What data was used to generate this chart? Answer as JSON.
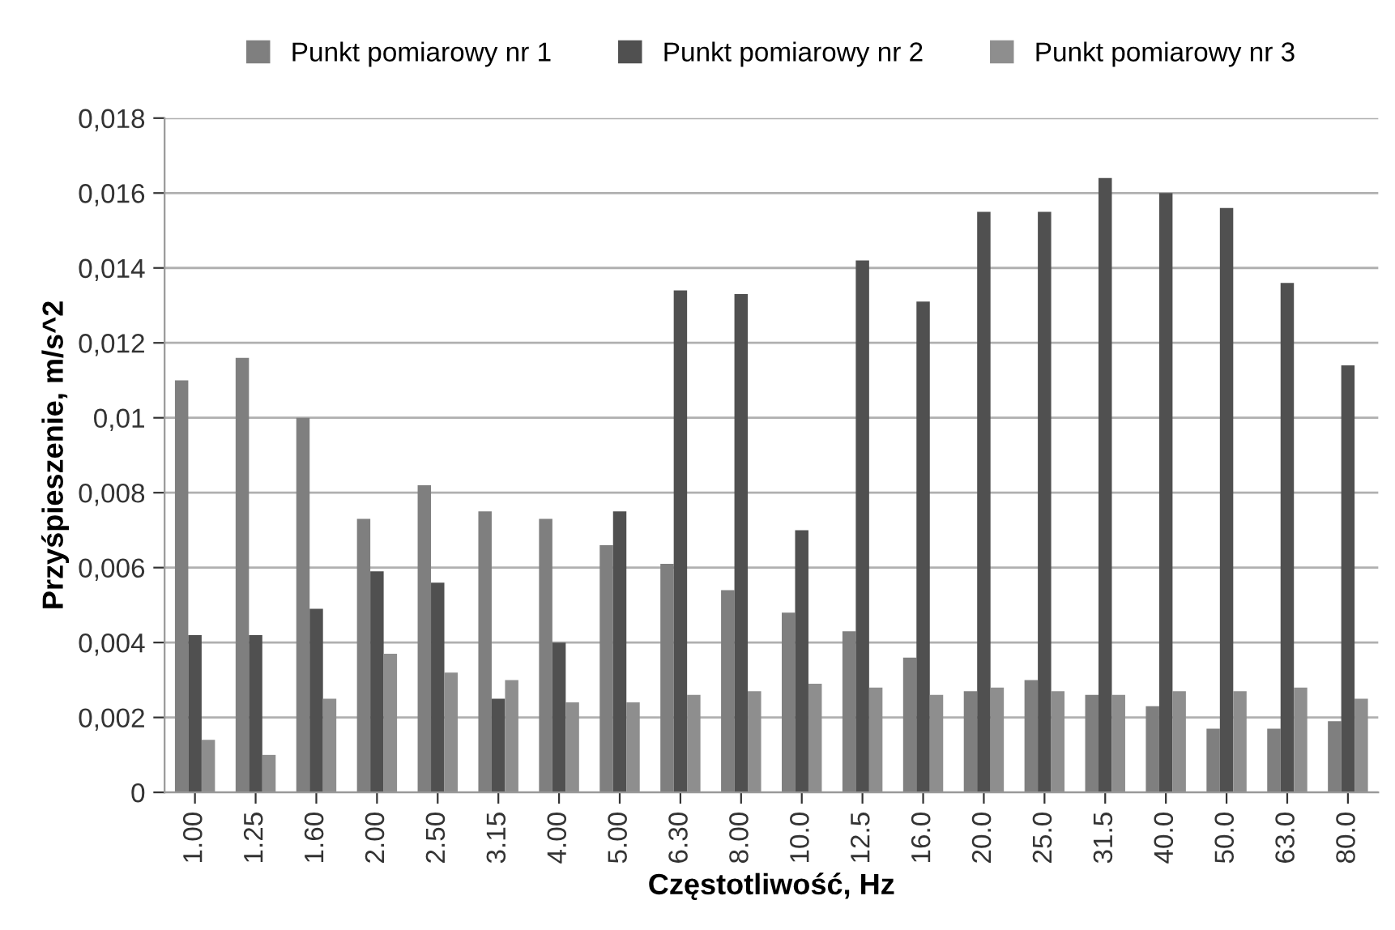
{
  "chart_data": {
    "type": "bar",
    "xlabel": "Częstotliwość, Hz",
    "ylabel": "Przyśpieszenie, m/s^2",
    "categories": [
      "1.00",
      "1.25",
      "1.60",
      "2.00",
      "2.50",
      "3.15",
      "4.00",
      "5.00",
      "6.30",
      "8.00",
      "10.0",
      "12.5",
      "16.0",
      "20.0",
      "25.0",
      "31.5",
      "40.0",
      "50.0",
      "63.0",
      "80.0"
    ],
    "series": [
      {
        "name": "Punkt pomiarowy nr 1",
        "color": "#7f7f7f",
        "values": [
          0.011,
          0.0116,
          0.01,
          0.0073,
          0.0082,
          0.0075,
          0.0073,
          0.0066,
          0.0061,
          0.0054,
          0.0048,
          0.0043,
          0.0036,
          0.0027,
          0.003,
          0.0026,
          0.0023,
          0.0017,
          0.0017,
          0.0019
        ]
      },
      {
        "name": "Punkt pomiarowy nr 2",
        "color": "#505050",
        "values": [
          0.0042,
          0.0042,
          0.0049,
          0.0059,
          0.0056,
          0.0025,
          0.004,
          0.0075,
          0.0134,
          0.0133,
          0.007,
          0.0142,
          0.0131,
          0.0155,
          0.0155,
          0.0164,
          0.016,
          0.0156,
          0.0136,
          0.0114
        ]
      },
      {
        "name": "Punkt pomiarowy nr 3",
        "color": "#8e8e8e",
        "values": [
          0.0014,
          0.001,
          0.0025,
          0.0037,
          0.0032,
          0.003,
          0.0024,
          0.0024,
          0.0026,
          0.0027,
          0.0029,
          0.0028,
          0.0026,
          0.0028,
          0.0027,
          0.0026,
          0.0027,
          0.0027,
          0.0028,
          0.0025
        ]
      }
    ],
    "ylim": [
      0,
      0.018
    ],
    "yticks": [
      0,
      {
        "value": 0.002,
        "label": "0,002"
      },
      {
        "value": 0.004,
        "label": "0,004"
      },
      {
        "value": 0.006,
        "label": "0,006"
      },
      {
        "value": 0.008,
        "label": "0,008"
      },
      {
        "value": 0.01,
        "label": "0,01"
      },
      {
        "value": 0.012,
        "label": "0,012"
      },
      {
        "value": 0.014,
        "label": "0,014"
      },
      {
        "value": 0.016,
        "label": "0,016"
      },
      {
        "value": 0.018,
        "label": "0,018"
      }
    ],
    "grid": "y",
    "legend": "top"
  }
}
